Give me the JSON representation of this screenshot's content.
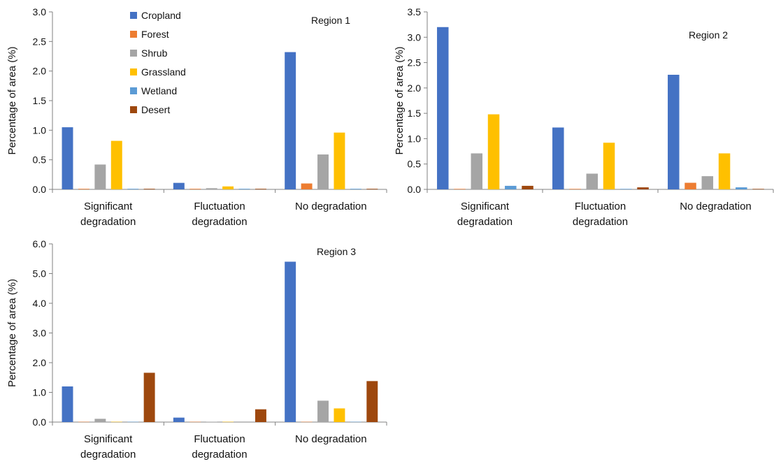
{
  "legend": [
    {
      "name": "Cropland",
      "color": "#4472C4"
    },
    {
      "name": "Forest",
      "color": "#ED7D31"
    },
    {
      "name": "Shrub",
      "color": "#A5A5A5"
    },
    {
      "name": "Grassland",
      "color": "#FFC000"
    },
    {
      "name": "Wetland",
      "color": "#5B9BD5"
    },
    {
      "name": "Desert",
      "color": "#9E480E"
    }
  ],
  "chart_data": [
    {
      "type": "bar",
      "title": "Region 1",
      "ylabel": "Percentage of area (%)",
      "xlabel": "",
      "categories": [
        [
          "Significant",
          "degradation"
        ],
        [
          "Fluctuation",
          "degradation"
        ],
        [
          "No degradation"
        ]
      ],
      "ylim": [
        0,
        3.0
      ],
      "yticks": [
        "0.0",
        "0.5",
        "1.0",
        "1.5",
        "2.0",
        "2.5",
        "3.0"
      ],
      "legend_position": "top-left",
      "series": [
        {
          "name": "Cropland",
          "values": [
            1.05,
            0.11,
            2.32
          ]
        },
        {
          "name": "Forest",
          "values": [
            0.01,
            0.01,
            0.1
          ]
        },
        {
          "name": "Shrub",
          "values": [
            0.42,
            0.02,
            0.59
          ]
        },
        {
          "name": "Grassland",
          "values": [
            0.82,
            0.05,
            0.96
          ]
        },
        {
          "name": "Wetland",
          "values": [
            0.01,
            0.01,
            0.01
          ]
        },
        {
          "name": "Desert",
          "values": [
            0.01,
            0.01,
            0.01
          ]
        }
      ]
    },
    {
      "type": "bar",
      "title": "Region 2",
      "ylabel": "Percentage of area (%)",
      "xlabel": "",
      "categories": [
        [
          "Significant",
          "degradation"
        ],
        [
          "Fluctuation",
          "degradation"
        ],
        [
          "No degradation"
        ]
      ],
      "ylim": [
        0,
        3.5
      ],
      "yticks": [
        "0.0",
        "0.5",
        "1.0",
        "1.5",
        "2.0",
        "2.5",
        "3.0",
        "3.5"
      ],
      "series": [
        {
          "name": "Cropland",
          "values": [
            3.2,
            1.22,
            2.26
          ]
        },
        {
          "name": "Forest",
          "values": [
            0.01,
            0.01,
            0.13
          ]
        },
        {
          "name": "Shrub",
          "values": [
            0.71,
            0.31,
            0.26
          ]
        },
        {
          "name": "Grassland",
          "values": [
            1.48,
            0.92,
            0.71
          ]
        },
        {
          "name": "Wetland",
          "values": [
            0.07,
            0.01,
            0.04
          ]
        },
        {
          "name": "Desert",
          "values": [
            0.07,
            0.04,
            0.01
          ]
        }
      ]
    },
    {
      "type": "bar",
      "title": "Region 3",
      "ylabel": "Percentage of area (%)",
      "xlabel": "",
      "categories": [
        [
          "Significant",
          "degradation"
        ],
        [
          "Fluctuation",
          "degradation"
        ],
        [
          "No degradation"
        ]
      ],
      "ylim": [
        0,
        6.0
      ],
      "yticks": [
        "0.0",
        "1.0",
        "2.0",
        "3.0",
        "4.0",
        "5.0",
        "6.0"
      ],
      "series": [
        {
          "name": "Cropland",
          "values": [
            1.2,
            0.15,
            5.4
          ]
        },
        {
          "name": "Forest",
          "values": [
            0.01,
            0.01,
            0.01
          ]
        },
        {
          "name": "Shrub",
          "values": [
            0.11,
            0.01,
            0.72
          ]
        },
        {
          "name": "Grassland",
          "values": [
            0.01,
            0.01,
            0.46
          ]
        },
        {
          "name": "Wetland",
          "values": [
            0.01,
            0.0,
            0.01
          ]
        },
        {
          "name": "Desert",
          "values": [
            1.66,
            0.43,
            1.38
          ]
        }
      ]
    }
  ]
}
